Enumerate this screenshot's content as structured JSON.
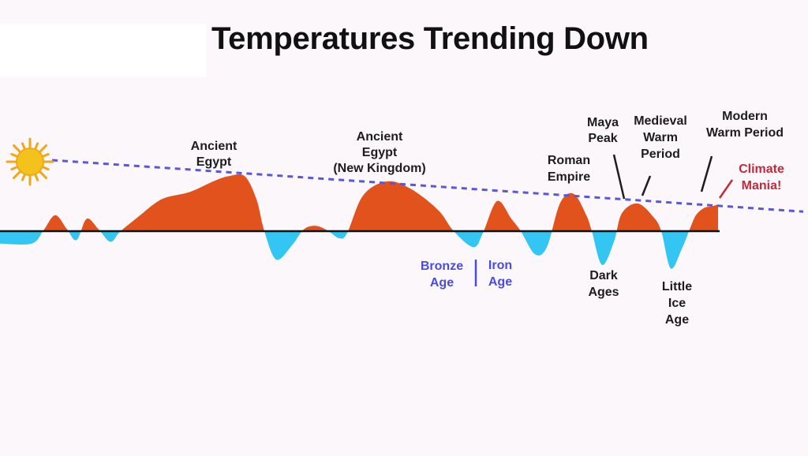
{
  "chart_data": {
    "type": "area",
    "title": "Temperatures Trending Down",
    "xlabel": "",
    "ylabel": "",
    "grid": false,
    "baseline": 0,
    "ylim": [
      -1.2,
      1.6
    ],
    "colors": {
      "warm": "#e1521c",
      "cold": "#33c6f2",
      "baseline": "#111111",
      "trend": "#5b57d6",
      "sun": "#f4c21d"
    },
    "profile": [
      [
        0,
        -0.35
      ],
      [
        40,
        -0.35
      ],
      [
        55,
        0.02
      ],
      [
        70,
        0.45
      ],
      [
        85,
        0.05
      ],
      [
        97,
        -0.25
      ],
      [
        110,
        0.35
      ],
      [
        125,
        0.05
      ],
      [
        140,
        -0.3
      ],
      [
        152,
        -0.02
      ],
      [
        175,
        0.4
      ],
      [
        205,
        0.9
      ],
      [
        240,
        1.1
      ],
      [
        270,
        1.4
      ],
      [
        290,
        1.55
      ],
      [
        310,
        1.55
      ],
      [
        325,
        0.9
      ],
      [
        335,
        0.0
      ],
      [
        350,
        -0.8
      ],
      [
        370,
        -0.4
      ],
      [
        385,
        0.05
      ],
      [
        400,
        0.15
      ],
      [
        415,
        0.02
      ],
      [
        430,
        -0.2
      ],
      [
        440,
        -0.05
      ],
      [
        460,
        1.0
      ],
      [
        490,
        1.4
      ],
      [
        520,
        1.2
      ],
      [
        555,
        0.6
      ],
      [
        575,
        0.0
      ],
      [
        600,
        -0.45
      ],
      [
        612,
        -0.05
      ],
      [
        630,
        0.85
      ],
      [
        648,
        0.35
      ],
      [
        660,
        0.0
      ],
      [
        678,
        -0.65
      ],
      [
        693,
        -0.45
      ],
      [
        710,
        0.8
      ],
      [
        727,
        1.05
      ],
      [
        743,
        0.45
      ],
      [
        750,
        0.0
      ],
      [
        763,
        -0.95
      ],
      [
        778,
        -0.3
      ],
      [
        788,
        0.5
      ],
      [
        808,
        0.78
      ],
      [
        828,
        0.4
      ],
      [
        838,
        0.0
      ],
      [
        850,
        -1.05
      ],
      [
        864,
        -0.5
      ],
      [
        874,
        0.05
      ],
      [
        882,
        0.45
      ],
      [
        892,
        0.65
      ],
      [
        902,
        0.7
      ],
      [
        910,
        0.75
      ]
    ],
    "trend_line": {
      "label": "",
      "start_y": 2.0,
      "end_y": 0.55
    },
    "annotations": [
      {
        "id": "ancient-egypt",
        "lines": [
          "Ancient",
          "Egypt"
        ],
        "type": "warm"
      },
      {
        "id": "ancient-egypt-new-kingdom",
        "lines": [
          "Ancient",
          "Egypt",
          "(New Kingdom)"
        ],
        "type": "warm"
      },
      {
        "id": "roman-empire",
        "lines": [
          "Roman",
          "Empire"
        ],
        "type": "warm"
      },
      {
        "id": "maya-peak",
        "lines": [
          "Maya",
          "Peak"
        ],
        "type": "warm"
      },
      {
        "id": "medieval-warm-period",
        "lines": [
          "Medieval",
          "Warm",
          "Period"
        ],
        "type": "warm"
      },
      {
        "id": "modern-warm-period",
        "lines": [
          "Modern",
          "Warm Period"
        ],
        "type": "warm"
      },
      {
        "id": "climate-mania",
        "lines": [
          "Climate",
          "Mania!"
        ],
        "type": "mania"
      },
      {
        "id": "bronze-age",
        "lines": [
          "Bronze",
          "Age"
        ],
        "type": "age"
      },
      {
        "id": "iron-age",
        "lines": [
          "Iron",
          "Age"
        ],
        "type": "age"
      },
      {
        "id": "dark-ages",
        "lines": [
          "Dark",
          "Ages"
        ],
        "type": "cold"
      },
      {
        "id": "little-ice-age",
        "lines": [
          "Little",
          "Ice",
          "Age"
        ],
        "type": "cold"
      }
    ]
  }
}
